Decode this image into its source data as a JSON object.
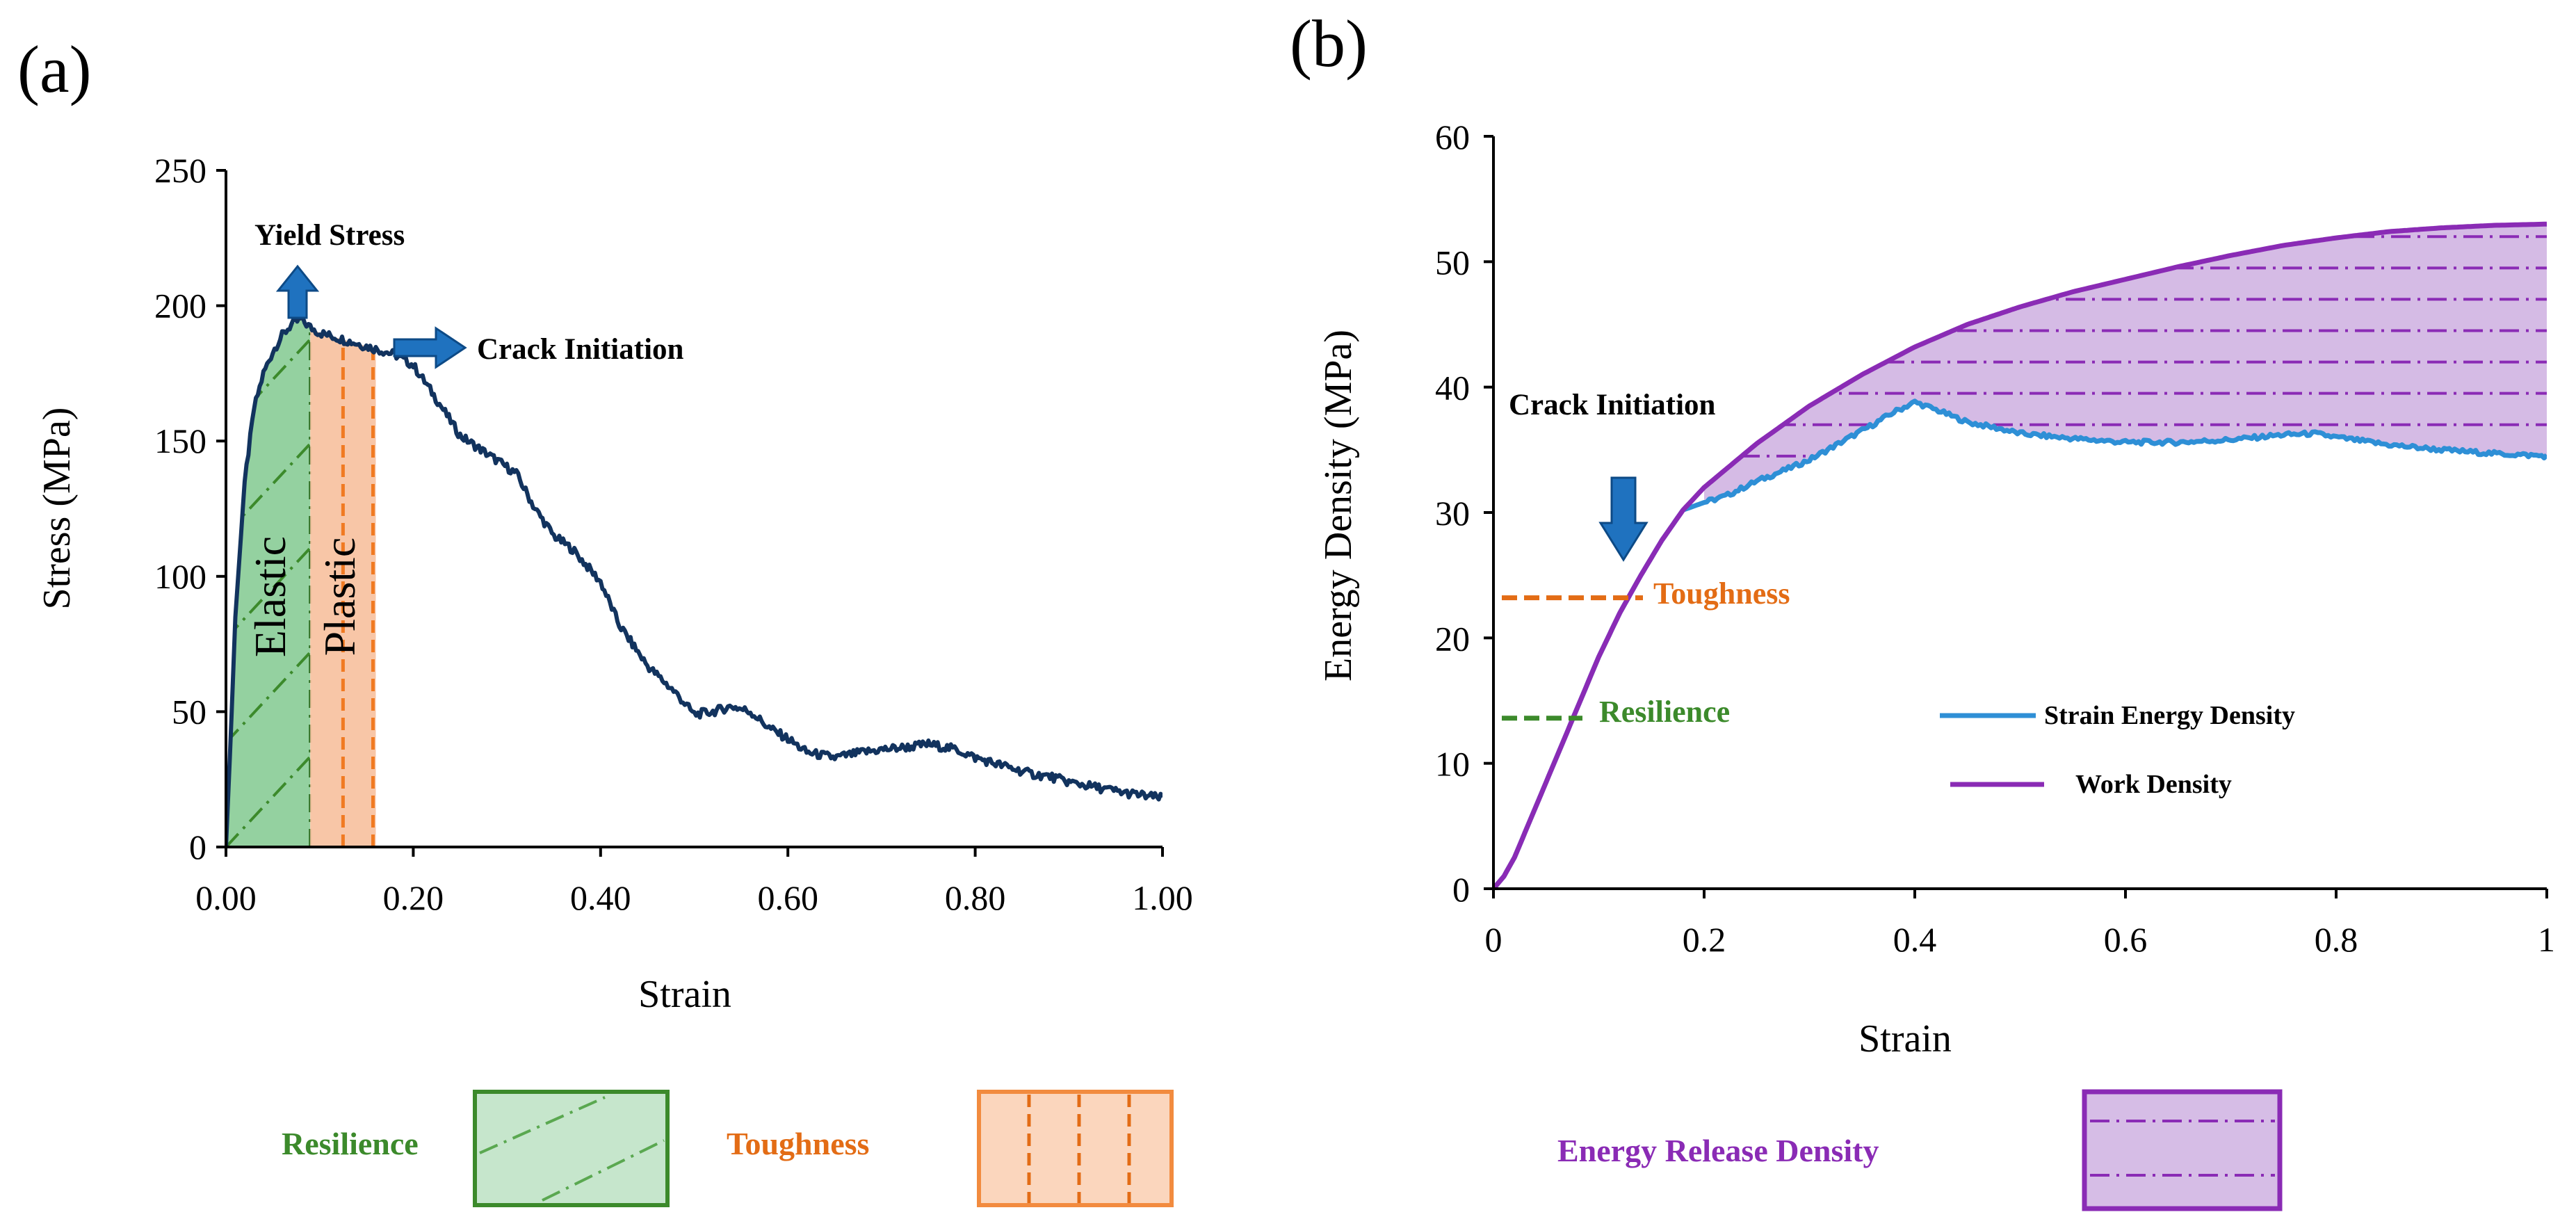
{
  "panels": {
    "a": {
      "label": "(a)"
    },
    "b": {
      "label": "(b)"
    }
  },
  "chart_data": [
    {
      "id": "stress-strain",
      "type": "line",
      "panel": "(a)",
      "xlabel": "Strain",
      "ylabel": "Stress (MPa)",
      "xlim": [
        0,
        1
      ],
      "ylim": [
        0,
        250
      ],
      "xticks": [
        "0.00",
        "0.20",
        "0.40",
        "0.60",
        "0.80",
        "1.00"
      ],
      "yticks": [
        "0",
        "50",
        "100",
        "150",
        "200",
        "250"
      ],
      "series": [
        {
          "name": "Stress",
          "color": "#12335e",
          "x": [
            0,
            0.005,
            0.01,
            0.02,
            0.03,
            0.04,
            0.05,
            0.06,
            0.07,
            0.08,
            0.09,
            0.1,
            0.12,
            0.14,
            0.16,
            0.18,
            0.2,
            0.22,
            0.25,
            0.28,
            0.31,
            0.33,
            0.35,
            0.37,
            0.4,
            0.42,
            0.45,
            0.48,
            0.5,
            0.52,
            0.54,
            0.56,
            0.58,
            0.6,
            0.62,
            0.65,
            0.68,
            0.7,
            0.73,
            0.75,
            0.78,
            0.8,
            0.83,
            0.86,
            0.88,
            0.9,
            0.93,
            0.96,
            1.0
          ],
          "y": [
            0,
            40,
            85,
            135,
            162,
            175,
            183,
            189,
            193,
            195,
            192,
            190,
            188,
            186,
            184,
            182,
            178,
            168,
            152,
            145,
            138,
            125,
            115,
            110,
            98,
            82,
            67,
            57,
            49,
            50,
            52,
            50,
            44,
            40,
            35,
            33,
            35,
            36,
            37,
            38,
            36,
            33,
            30,
            27,
            26,
            24,
            22,
            20,
            18
          ]
        }
      ],
      "regions": [
        {
          "name": "Elastic",
          "x_range": [
            0,
            0.09
          ],
          "color": "#90cf9e"
        },
        {
          "name": "Plastic",
          "x_range": [
            0.09,
            0.16
          ],
          "color": "#f8c6a5"
        }
      ],
      "annotations": {
        "yield": "Yield Stress",
        "crack": "Crack Initiation",
        "elastic": "Elastic",
        "plastic": "Plastic"
      }
    },
    {
      "id": "energy-density",
      "type": "line",
      "panel": "(b)",
      "xlabel": "Strain",
      "ylabel": "Energy Density (MPa)",
      "xlim": [
        0,
        1
      ],
      "ylim": [
        0,
        60
      ],
      "xticks": [
        "0",
        "0.2",
        "0.4",
        "0.6",
        "0.8",
        "1"
      ],
      "yticks": [
        "0",
        "10",
        "20",
        "30",
        "40",
        "50",
        "60"
      ],
      "series": [
        {
          "name": "Strain Energy Density",
          "color": "#2e8fd6",
          "x": [
            0,
            0.01,
            0.02,
            0.04,
            0.06,
            0.08,
            0.1,
            0.12,
            0.14,
            0.16,
            0.18,
            0.2,
            0.22,
            0.25,
            0.28,
            0.3,
            0.33,
            0.36,
            0.38,
            0.4,
            0.42,
            0.45,
            0.48,
            0.5,
            0.55,
            0.6,
            0.65,
            0.7,
            0.75,
            0.78,
            0.8,
            0.85,
            0.9,
            0.95,
            1.0
          ],
          "y": [
            0,
            1,
            2.5,
            6.5,
            10.5,
            14.5,
            18.5,
            22,
            25,
            27.8,
            30.2,
            30.8,
            31.3,
            32.5,
            33.5,
            34.2,
            35.6,
            37,
            38,
            38.8,
            38.2,
            37.2,
            36.7,
            36.3,
            35.9,
            35.6,
            35.6,
            35.8,
            36.2,
            36.3,
            36,
            35.4,
            35,
            34.7,
            34.5
          ]
        },
        {
          "name": "Work Density",
          "color": "#8a2bb5",
          "x": [
            0,
            0.01,
            0.02,
            0.04,
            0.06,
            0.08,
            0.1,
            0.12,
            0.14,
            0.16,
            0.18,
            0.2,
            0.25,
            0.3,
            0.35,
            0.4,
            0.45,
            0.5,
            0.55,
            0.6,
            0.65,
            0.7,
            0.75,
            0.8,
            0.85,
            0.9,
            0.95,
            1.0
          ],
          "y": [
            0,
            1,
            2.5,
            6.5,
            10.5,
            14.5,
            18.5,
            22,
            25,
            27.8,
            30.2,
            32,
            35.5,
            38.5,
            41,
            43.2,
            45,
            46.4,
            47.6,
            48.6,
            49.6,
            50.5,
            51.3,
            51.9,
            52.4,
            52.7,
            52.9,
            53
          ]
        }
      ],
      "levels": {
        "toughness": 23.2,
        "resilience": 13.6
      },
      "annotations": {
        "crack": "Crack Initiation",
        "toughness": "Toughness",
        "resilience": "Resilience"
      }
    }
  ],
  "legend": {
    "resilience": "Resilience",
    "toughness": "Toughness",
    "energy_release": "Energy Release Density",
    "strain_energy": "Strain Energy Density",
    "work_density": "Work Density"
  },
  "colors": {
    "green_dark": "#3c8a2b",
    "green_fill": "#c6e6cc",
    "orange": "#f28b3f",
    "orange_dark": "#e36c15",
    "orange_fill": "#fbd6bd",
    "purple": "#8a2bb5",
    "purple_fill": "#d6bde6",
    "blue_arrow": "#1f72bf",
    "dark_navy": "#12335e"
  }
}
